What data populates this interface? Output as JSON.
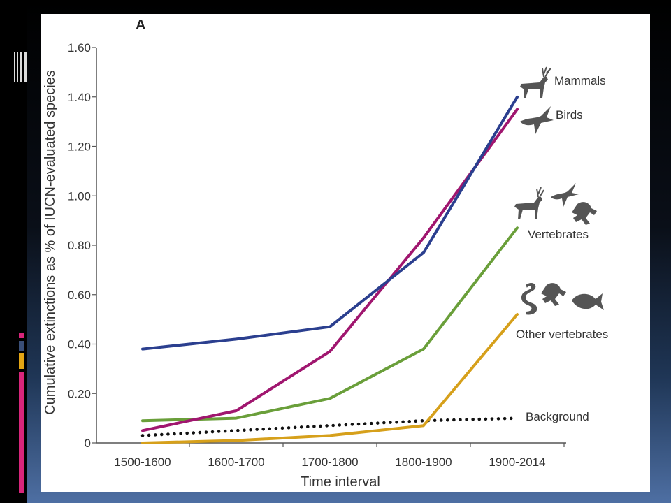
{
  "colors": {
    "mammals": "#2b3f8f",
    "birds": "#a0166f",
    "vertebrates": "#6a9f3a",
    "other_vertebrates": "#d6a01b",
    "background": "#111111",
    "axis": "#555555",
    "icons": "#5a5a5a",
    "accent_pink": "#d8257b",
    "accent_gold": "#e3a514",
    "accent_blue": "#3a4f78"
  },
  "chart_data": {
    "type": "line",
    "panel_label": "A",
    "xlabel": "Time interval",
    "ylabel": "Cumulative extinctions as % of IUCN-evaluated species",
    "categories": [
      "1500-1600",
      "1600-1700",
      "1700-1800",
      "1800-1900",
      "1900-2014"
    ],
    "yticks": [
      "0",
      "0.20",
      "0.40",
      "0.60",
      "0.80",
      "1.00",
      "1.20",
      "1.40",
      "1.60"
    ],
    "ylim": [
      0,
      1.6
    ],
    "grid": false,
    "series": [
      {
        "name": "Mammals",
        "key": "mammals",
        "values": [
          0.38,
          0.42,
          0.47,
          0.77,
          1.4
        ],
        "style": "solid",
        "icon": "deer-icon"
      },
      {
        "name": "Birds",
        "key": "birds",
        "values": [
          0.05,
          0.13,
          0.37,
          0.83,
          1.35
        ],
        "style": "solid",
        "icon": "bird-icon"
      },
      {
        "name": "Vertebrates",
        "key": "vertebrates",
        "values": [
          0.09,
          0.1,
          0.18,
          0.38,
          0.87
        ],
        "style": "solid",
        "icon": "deer-bird-frog-icon"
      },
      {
        "name": "Other vertebrates",
        "key": "other_vertebrates",
        "values": [
          0,
          0.01,
          0.03,
          0.07,
          0.52
        ],
        "style": "solid",
        "icon": "snake-frog-fish-icon"
      },
      {
        "name": "Background",
        "key": "background",
        "values": [
          0.03,
          0.05,
          0.07,
          0.09,
          0.1
        ],
        "style": "dotted"
      }
    ]
  }
}
